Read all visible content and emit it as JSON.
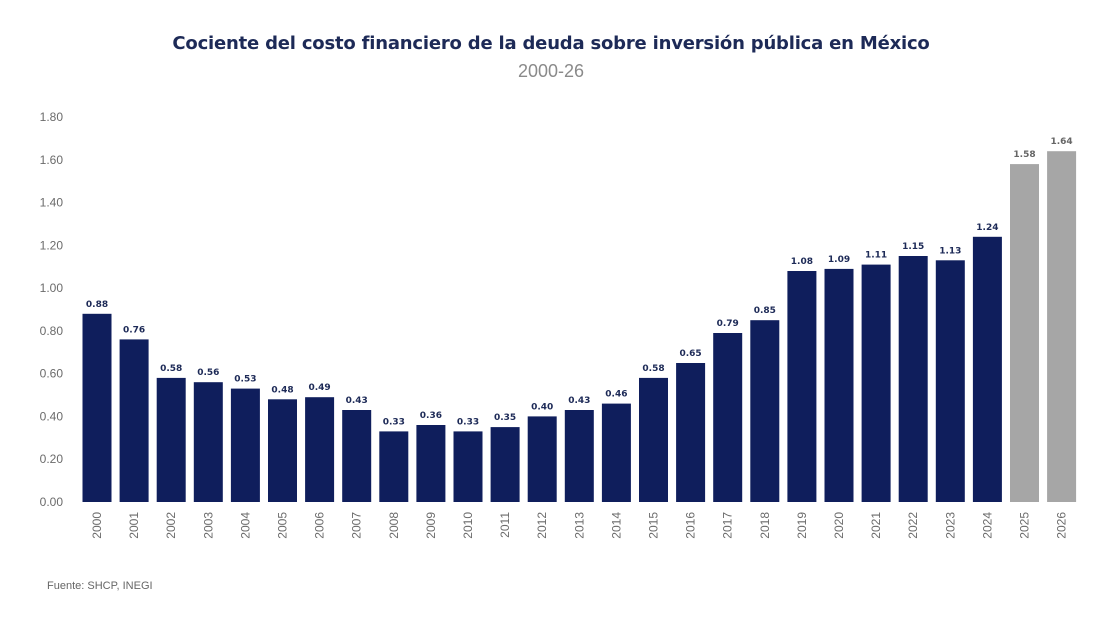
{
  "chart_data": {
    "type": "bar",
    "title": "Cociente del costo financiero de la deuda sobre inversión pública en México",
    "subtitle": "2000-26",
    "xlabel": "",
    "ylabel": "",
    "ylim": [
      0,
      1.8
    ],
    "yticks": [
      "0.00",
      "0.20",
      "0.40",
      "0.60",
      "0.80",
      "1.00",
      "1.20",
      "1.40",
      "1.60",
      "1.80"
    ],
    "grid": false,
    "categories": [
      "2000",
      "2001",
      "2002",
      "2003",
      "2004",
      "2005",
      "2006",
      "2007",
      "2008",
      "2009",
      "2010",
      "2011",
      "2012",
      "2013",
      "2014",
      "2015",
      "2016",
      "2017",
      "2018",
      "2019",
      "2020",
      "2021",
      "2022",
      "2023",
      "2024",
      "2025",
      "2026"
    ],
    "values": [
      0.88,
      0.76,
      0.58,
      0.56,
      0.53,
      0.48,
      0.49,
      0.43,
      0.33,
      0.36,
      0.33,
      0.35,
      0.4,
      0.43,
      0.46,
      0.58,
      0.65,
      0.79,
      0.85,
      1.08,
      1.09,
      1.11,
      1.15,
      1.13,
      1.24,
      1.58,
      1.64
    ],
    "labels": [
      "0.88",
      "0.76",
      "0.58",
      "0.56",
      "0.53",
      "0.48",
      "0.49",
      "0.43",
      "0.33",
      "0.36",
      "0.33",
      "0.35",
      "0.40",
      "0.43",
      "0.46",
      "0.58",
      "0.65",
      "0.79",
      "0.85",
      "1.08",
      "1.09",
      "1.11",
      "1.15",
      "1.13",
      "1.24",
      "1.58",
      "1.64"
    ],
    "projected_from_index": 25,
    "colors": {
      "actual": "#0f1e5c",
      "projected": "#a6a6a6",
      "label": "#1d2a57",
      "axis_text": "#6b6b6b"
    }
  },
  "footer": {
    "source": "Fuente: SHCP, INEGI"
  }
}
